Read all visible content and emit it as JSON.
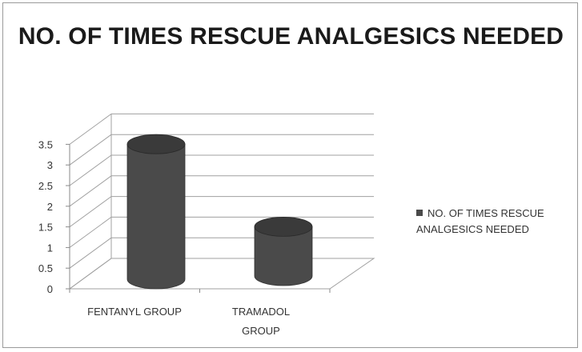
{
  "chart_data": {
    "type": "bar",
    "title": "NO. OF TIMES RESCUE ANALGESICS NEEDED",
    "categories": [
      "FENTANYL GROUP",
      "TRAMADOL GROUP"
    ],
    "series": [
      {
        "name": "NO. OF TIMES RESCUE ANALGESICS NEEDED",
        "values": [
          3,
          1
        ],
        "color": "#4a4a4a"
      }
    ],
    "y_ticks": [
      "0",
      "0.5",
      "1",
      "1.5",
      "2",
      "2.5",
      "3",
      "3.5"
    ],
    "ylim": [
      0,
      3.5
    ],
    "xlabel": "",
    "ylabel": "",
    "grid": true,
    "legend_position": "right",
    "style": "3d-cylinder"
  }
}
